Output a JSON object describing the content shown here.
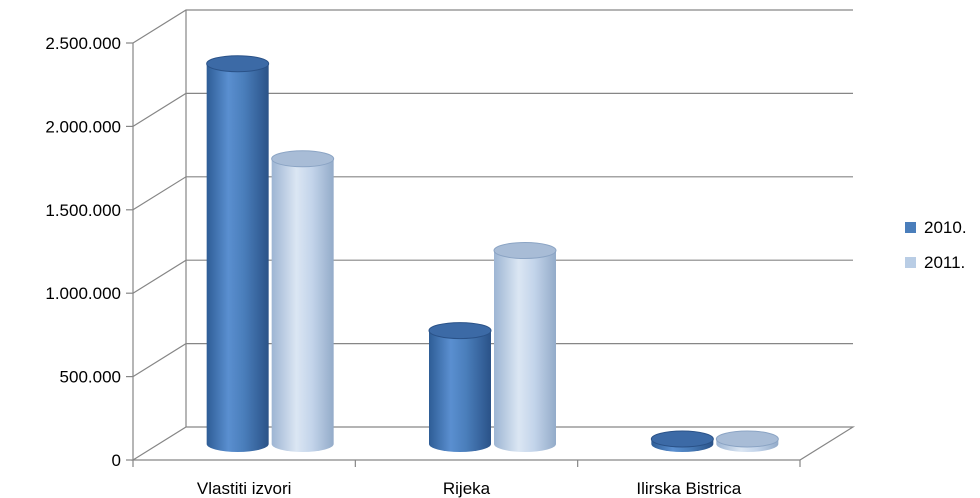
{
  "chart_data": {
    "type": "bar",
    "style": "3d-cylinder",
    "categories": [
      "Vlastiti izvori",
      "Rijeka",
      "Ilirska Bistrica"
    ],
    "series": [
      {
        "name": "2010.",
        "values": [
          2280000,
          680000,
          30000
        ],
        "color": "#4A7EBB"
      },
      {
        "name": "2011.",
        "values": [
          1710000,
          1160000,
          30000
        ],
        "color": "#B9CDE5"
      }
    ],
    "ylim": [
      0,
      2500000
    ],
    "yticks": [
      0,
      500000,
      1000000,
      1500000,
      2000000,
      2500000
    ],
    "ytick_labels": [
      "0",
      "500.000",
      "1.000.000",
      "1.500.000",
      "2.000.000",
      "2.500.000"
    ],
    "grid": true,
    "legend": "right",
    "title": "",
    "xlabel": "",
    "ylabel": ""
  }
}
